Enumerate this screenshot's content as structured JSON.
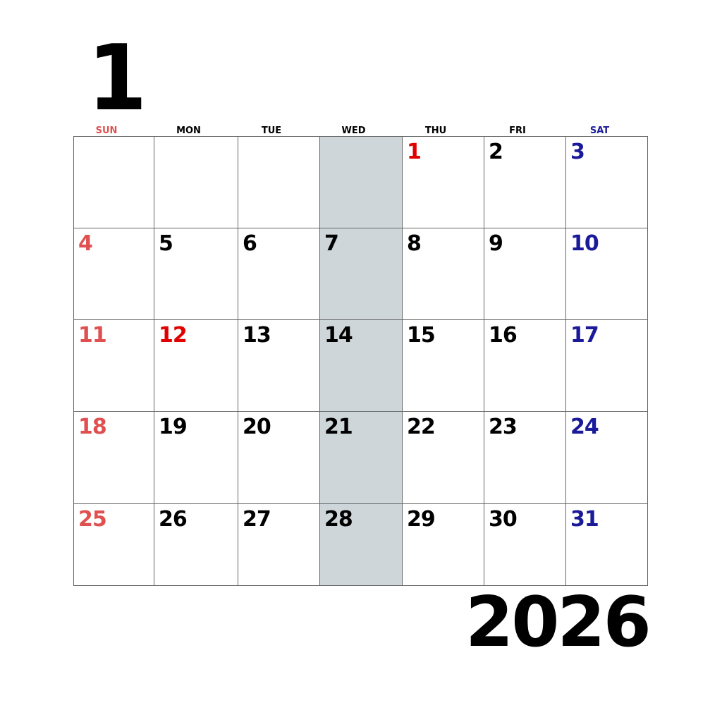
{
  "month": "1",
  "year": "2026",
  "colors": {
    "sunday": "#e05050",
    "holiday": "#e00000",
    "saturday": "#1a1a9a",
    "weekday": "#000000",
    "highlight_column": "#cfd6da",
    "grid_line": "#666666"
  },
  "weekdays": [
    {
      "label": "SUN",
      "color": "#e05050"
    },
    {
      "label": "MON",
      "color": "#000000"
    },
    {
      "label": "TUE",
      "color": "#000000"
    },
    {
      "label": "WED",
      "color": "#000000"
    },
    {
      "label": "THU",
      "color": "#000000"
    },
    {
      "label": "FRI",
      "color": "#000000"
    },
    {
      "label": "SAT",
      "color": "#1a1a9a"
    }
  ],
  "highlighted_column": 3,
  "weeks": [
    [
      {
        "day": "",
        "color": "#000000"
      },
      {
        "day": "",
        "color": "#000000"
      },
      {
        "day": "",
        "color": "#000000"
      },
      {
        "day": "",
        "color": "#000000"
      },
      {
        "day": "1",
        "color": "#e00000"
      },
      {
        "day": "2",
        "color": "#000000"
      },
      {
        "day": "3",
        "color": "#1a1a9a"
      }
    ],
    [
      {
        "day": "4",
        "color": "#e05050"
      },
      {
        "day": "5",
        "color": "#000000"
      },
      {
        "day": "6",
        "color": "#000000"
      },
      {
        "day": "7",
        "color": "#000000"
      },
      {
        "day": "8",
        "color": "#000000"
      },
      {
        "day": "9",
        "color": "#000000"
      },
      {
        "day": "10",
        "color": "#1a1a9a"
      }
    ],
    [
      {
        "day": "11",
        "color": "#e05050"
      },
      {
        "day": "12",
        "color": "#e00000"
      },
      {
        "day": "13",
        "color": "#000000"
      },
      {
        "day": "14",
        "color": "#000000"
      },
      {
        "day": "15",
        "color": "#000000"
      },
      {
        "day": "16",
        "color": "#000000"
      },
      {
        "day": "17",
        "color": "#1a1a9a"
      }
    ],
    [
      {
        "day": "18",
        "color": "#e05050"
      },
      {
        "day": "19",
        "color": "#000000"
      },
      {
        "day": "20",
        "color": "#000000"
      },
      {
        "day": "21",
        "color": "#000000"
      },
      {
        "day": "22",
        "color": "#000000"
      },
      {
        "day": "23",
        "color": "#000000"
      },
      {
        "day": "24",
        "color": "#1a1a9a"
      }
    ],
    [
      {
        "day": "25",
        "color": "#e05050"
      },
      {
        "day": "26",
        "color": "#000000"
      },
      {
        "day": "27",
        "color": "#000000"
      },
      {
        "day": "28",
        "color": "#000000"
      },
      {
        "day": "29",
        "color": "#000000"
      },
      {
        "day": "30",
        "color": "#000000"
      },
      {
        "day": "31",
        "color": "#1a1a9a"
      }
    ]
  ]
}
